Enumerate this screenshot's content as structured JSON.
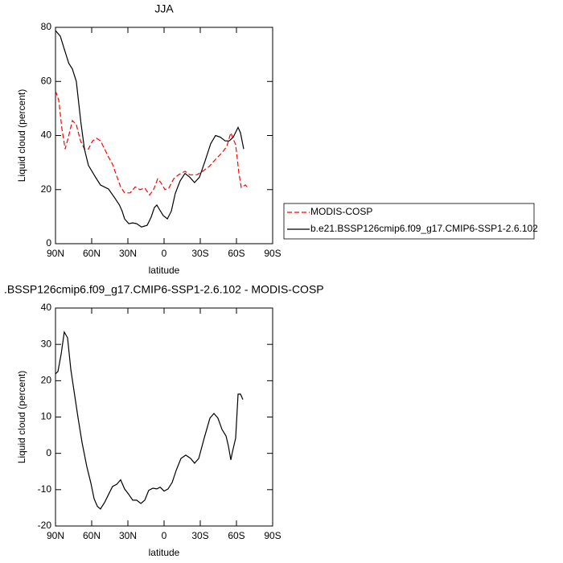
{
  "chart_data": [
    {
      "type": "line",
      "title": "JJA",
      "xlabel": "latitude",
      "ylabel": "Liquid cloud (percent)",
      "xlim": [
        90,
        -90
      ],
      "xticks": [
        {
          "value": 90,
          "label": "90N"
        },
        {
          "value": 60,
          "label": "60N"
        },
        {
          "value": 30,
          "label": "30N"
        },
        0,
        {
          "value": -30,
          "label": "30S"
        },
        {
          "value": -60,
          "label": "60S"
        },
        {
          "value": -90,
          "label": "90S"
        }
      ],
      "ylim": [
        0,
        80
      ],
      "yticks": [
        0,
        20,
        40,
        60,
        80
      ],
      "legend": "right",
      "series": [
        {
          "name": "MODIS-COSP",
          "color": "#ff0000",
          "line_style": "dashed",
          "x": [
            90,
            87.3,
            84.7,
            82,
            79.3,
            76,
            72.7,
            69.3,
            66,
            62.7,
            59.3,
            56,
            52.7,
            49.3,
            46,
            42.7,
            39.3,
            36,
            32.7,
            28,
            24,
            20,
            16,
            12,
            8.7,
            5.3,
            2.7,
            -0.7,
            -4,
            -8,
            -12,
            -17.3,
            -21.3,
            -27.3,
            -32,
            -37.3,
            -42.7,
            -48,
            -52,
            -55.3,
            -58,
            -59.3,
            -62,
            -64,
            -67.3,
            -70
          ],
          "values": [
            56.5,
            53,
            42.6,
            35,
            39.5,
            45.5,
            44,
            38,
            35,
            35,
            38,
            39,
            38,
            35,
            32,
            29.4,
            25,
            21,
            18.8,
            18.8,
            21,
            20,
            20.6,
            18,
            20,
            24,
            22.6,
            20,
            20.6,
            24,
            25.5,
            26.8,
            25.5,
            25.5,
            26.8,
            28.5,
            31.2,
            33.6,
            36,
            41,
            38,
            36.6,
            26.2,
            20.8,
            21.7,
            20.5
          ]
        },
        {
          "name": "b.e21.BSSP126cmip6.f09_g17.CMIP6-SSP1-2.6.102",
          "color": "#000000",
          "line_style": "solid",
          "x": [
            90,
            86,
            82.7,
            79,
            76,
            72.7,
            69,
            66,
            62.7,
            57,
            52.7,
            46,
            41,
            37,
            34.7,
            32.7,
            29.3,
            26,
            22.7,
            18.7,
            14,
            10.7,
            8,
            6,
            4,
            0.7,
            -2.7,
            -6,
            -9.3,
            -13.3,
            -17.3,
            -21.3,
            -25.3,
            -29.3,
            -34,
            -38.7,
            -42.7,
            -46.7,
            -50.7,
            -54,
            -57.3,
            -61.3,
            -63.3,
            -66
          ],
          "values": [
            78.8,
            76.7,
            72,
            66.7,
            64.6,
            60,
            45,
            35,
            29,
            24.7,
            21.7,
            20.2,
            17,
            14.3,
            12,
            9.2,
            7.4,
            7.7,
            7.4,
            6.2,
            6.8,
            9.8,
            13.4,
            14.3,
            12.8,
            10.4,
            9.2,
            12,
            18.6,
            23.2,
            26,
            24.6,
            22.6,
            24.6,
            30.6,
            37,
            40,
            39.4,
            38,
            38,
            39.4,
            43,
            41,
            35
          ]
        }
      ]
    },
    {
      "type": "line",
      "title": ".BSSP126cmip6.f09_g17.CMIP6-SSP1-2.6.102 - MODIS-COSP",
      "xlabel": "latitude",
      "ylabel": "Liquid cloud (percent)",
      "xlim": [
        90,
        -90
      ],
      "xticks": [
        {
          "value": 90,
          "label": "90N"
        },
        {
          "value": 60,
          "label": "60N"
        },
        {
          "value": 30,
          "label": "30N"
        },
        0,
        {
          "value": -30,
          "label": "30S"
        },
        {
          "value": -60,
          "label": "60S"
        },
        {
          "value": -90,
          "label": "90S"
        }
      ],
      "ylim": [
        -20,
        40
      ],
      "yticks": [
        -20,
        -10,
        0,
        10,
        20,
        30,
        40
      ],
      "color": "#000000",
      "x": [
        90,
        88,
        85.3,
        82.7,
        80,
        77.3,
        74.7,
        71.3,
        68,
        64,
        60.7,
        58,
        55.3,
        52.7,
        49.3,
        46,
        42.7,
        39.3,
        36,
        32.7,
        29.3,
        26,
        22.7,
        19.3,
        16,
        12.7,
        9.3,
        6,
        3.3,
        0,
        -3.3,
        -6.7,
        -10,
        -14,
        -18,
        -22,
        -25.3,
        -28.7,
        -33.3,
        -38,
        -41.3,
        -44.7,
        -48,
        -51.3,
        -53.3,
        -55.3,
        -56.7,
        -59.3,
        -61.3,
        -63.3,
        -65.3
      ],
      "values": [
        21.9,
        22.5,
        27.4,
        33.4,
        31.8,
        23,
        17.4,
        9.7,
        3,
        -3.7,
        -8.1,
        -12.5,
        -14.6,
        -15.3,
        -13.5,
        -11.3,
        -9.1,
        -8.5,
        -7.3,
        -9.8,
        -11.3,
        -12.9,
        -12.9,
        -13.8,
        -12.9,
        -10.2,
        -9.6,
        -9.8,
        -9.3,
        -10.4,
        -9.8,
        -8,
        -4.7,
        -1.4,
        -0.5,
        -1.4,
        -2.7,
        -1.4,
        4.2,
        9.7,
        11,
        9.7,
        6.6,
        4.8,
        2,
        -1.8,
        0.4,
        4.2,
        16.3,
        16.3,
        14.8
      ]
    }
  ]
}
